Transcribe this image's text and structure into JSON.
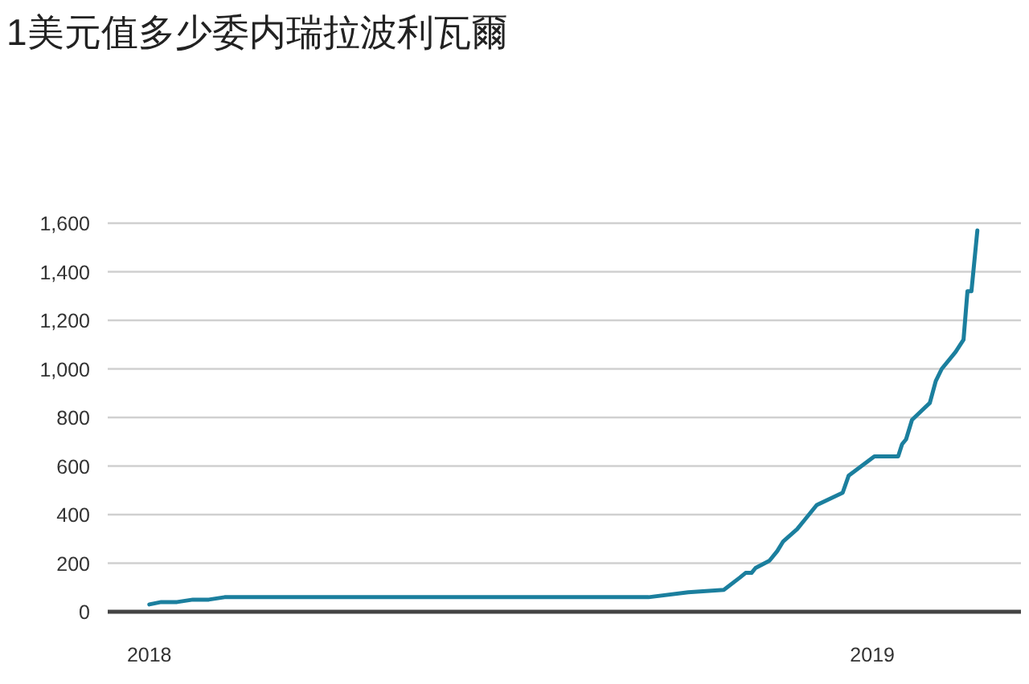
{
  "chart_data": {
    "type": "line",
    "title": "1美元值多少委内瑞拉波利瓦爾",
    "x": [
      "2018-01-01",
      "2018-01-07",
      "2018-01-15",
      "2018-01-23",
      "2018-01-31",
      "2018-02-08",
      "2018-07-13",
      "2018-09-10",
      "2018-09-30",
      "2018-10-18",
      "2018-10-26",
      "2018-10-29",
      "2018-11-01",
      "2018-11-03",
      "2018-11-10",
      "2018-11-14",
      "2018-11-17",
      "2018-11-24",
      "2018-11-28",
      "2018-12-04",
      "2018-12-17",
      "2018-12-20",
      "2019-01-02",
      "2019-01-14",
      "2019-01-16",
      "2019-01-18",
      "2019-01-21",
      "2019-01-30",
      "2019-02-02",
      "2019-02-05",
      "2019-02-12",
      "2019-02-16",
      "2019-02-18",
      "2019-02-20",
      "2019-02-23"
    ],
    "series": [
      {
        "color": "#1b7f9e",
        "values": [
          30,
          40,
          40,
          50,
          50,
          60,
          60,
          60,
          80,
          90,
          140,
          160,
          160,
          180,
          210,
          250,
          290,
          340,
          380,
          440,
          490,
          560,
          640,
          640,
          690,
          710,
          790,
          860,
          950,
          1000,
          1070,
          1120,
          1320,
          1320,
          1570
        ]
      }
    ],
    "xlim": [
      "2017-12-11",
      "2019-03-17"
    ],
    "xticks": [
      {
        "value": "2018-01-01",
        "label": "2018"
      },
      {
        "value": "2019-01-01",
        "label": "2019"
      }
    ],
    "ylim": [
      0,
      1600
    ],
    "yticks": [
      {
        "value": 0,
        "label": "0"
      },
      {
        "value": 200,
        "label": "200"
      },
      {
        "value": 400,
        "label": "400"
      },
      {
        "value": 600,
        "label": "600"
      },
      {
        "value": 800,
        "label": "800"
      },
      {
        "value": 1000,
        "label": "1,000"
      },
      {
        "value": 1200,
        "label": "1,200"
      },
      {
        "value": 1400,
        "label": "1,400"
      },
      {
        "value": 1600,
        "label": "1,600"
      }
    ],
    "grid": "y",
    "marker": "none",
    "line_style": "solid"
  }
}
